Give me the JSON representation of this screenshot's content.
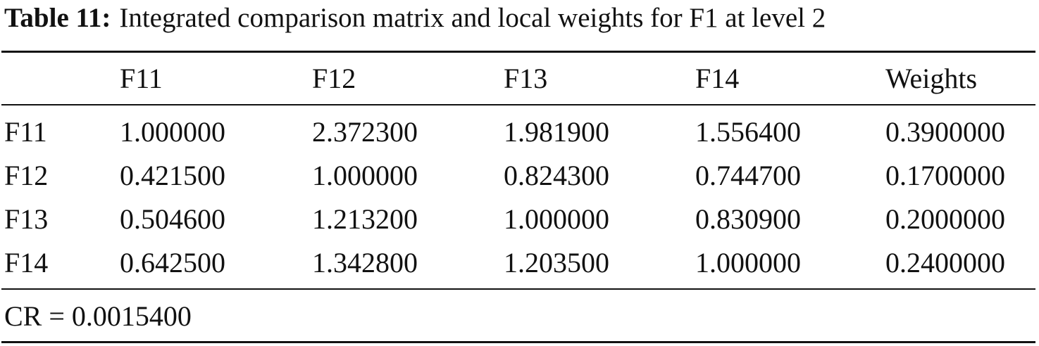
{
  "caption": {
    "label": "Table 11:",
    "text": "Integrated comparison matrix and local weights for F1 at level 2"
  },
  "table": {
    "header": [
      "F11",
      "F12",
      "F13",
      "F14",
      "Weights"
    ],
    "rows": [
      [
        "F11",
        "1.000000",
        "2.372300",
        "1.981900",
        "1.556400",
        "0.3900000"
      ],
      [
        "F12",
        "0.421500",
        "1.000000",
        "0.824300",
        "0.744700",
        "0.1700000"
      ],
      [
        "F13",
        "0.504600",
        "1.213200",
        "1.000000",
        "0.830900",
        "0.2000000"
      ],
      [
        "F14",
        "0.642500",
        "1.342800",
        "1.203500",
        "1.000000",
        "0.2400000"
      ]
    ],
    "footer": "CR = 0.0015400"
  }
}
